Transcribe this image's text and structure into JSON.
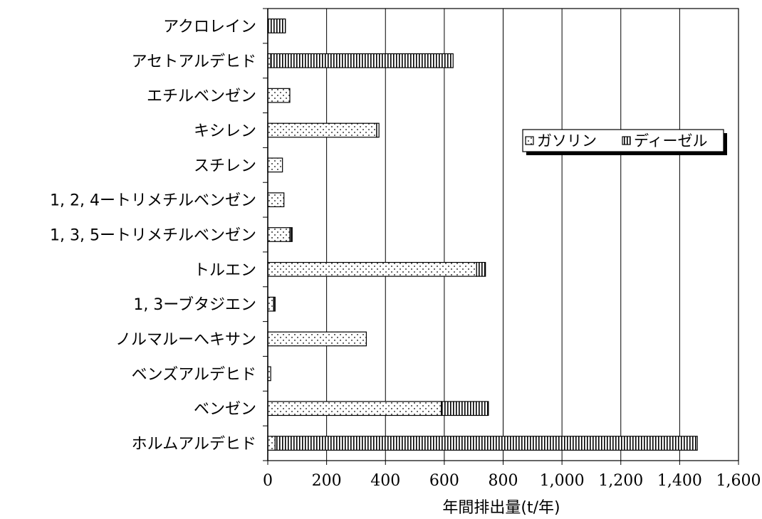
{
  "chart_data": {
    "type": "bar",
    "orientation": "horizontal",
    "stacked": true,
    "categories": [
      "アクロレイン",
      "アセトアルデヒド",
      "エチルベンゼン",
      "キシレン",
      "スチレン",
      "1, 2, 4ートリメチルベンゼン",
      "1, 3, 5ートリメチルベンゼン",
      "トルエン",
      "1, 3ーブタジエン",
      "ノルマルーへキサン",
      "ベンズアルデヒド",
      "ベンゼン",
      "ホルムアルデヒド"
    ],
    "series": [
      {
        "name": "ガソリン",
        "pattern": "dots",
        "values": [
          0,
          10,
          75,
          370,
          50,
          55,
          75,
          710,
          20,
          335,
          10,
          590,
          25
        ]
      },
      {
        "name": "ディーゼル",
        "pattern": "vertical-stripes",
        "values": [
          60,
          620,
          0,
          8,
          0,
          0,
          8,
          30,
          5,
          0,
          0,
          160,
          1435
        ]
      }
    ],
    "xlabel": "年間排出量(t/年)",
    "ylabel": "",
    "xlim": [
      0,
      1600
    ],
    "x_ticks": [
      0,
      200,
      400,
      600,
      800,
      1000,
      1200,
      1400,
      1600
    ],
    "x_tick_labels": [
      "0",
      "200",
      "400",
      "600",
      "800",
      "1,000",
      "1,200",
      "1,400",
      "1,600"
    ],
    "grid": "vertical major gridlines",
    "legend_position": "right",
    "colors": {
      "fill": "#ffffff",
      "ink": "#000000"
    }
  }
}
